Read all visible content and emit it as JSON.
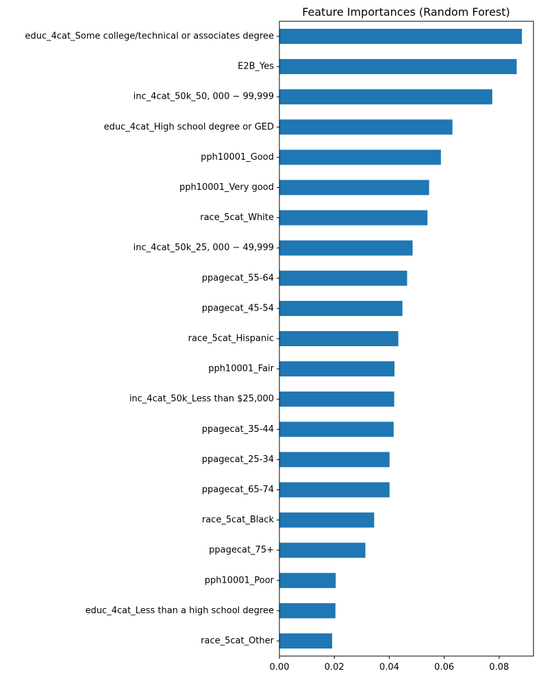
{
  "chart_data": {
    "type": "bar",
    "orientation": "horizontal",
    "title": "Feature Importances (Random Forest)",
    "xlabel": "",
    "ylabel": "",
    "xlim": [
      0.0,
      0.0925
    ],
    "x_ticks": [
      "0.00",
      "0.02",
      "0.04",
      "0.06",
      "0.08"
    ],
    "x_tick_values": [
      0.0,
      0.02,
      0.04,
      0.06,
      0.08
    ],
    "bar_color": "#1f77b4",
    "grid": false,
    "categories": [
      "educ_4cat_Some college/technical or associates degree",
      "E2B_Yes",
      "inc_4cat_50k_50, 000 − 99,999",
      "educ_4cat_High school degree or GED",
      "pph10001_Good",
      "pph10001_Very good",
      "race_5cat_White",
      "inc_4cat_50k_25, 000 − 49,999",
      "ppagecat_55-64",
      "ppagecat_45-54",
      "race_5cat_Hispanic",
      "pph10001_Fair",
      "inc_4cat_50k_Less than $25,000",
      "ppagecat_35-44",
      "ppagecat_25-34",
      "ppagecat_65-74",
      "race_5cat_Black",
      "ppagecat_75+",
      "pph10001_Poor",
      "educ_4cat_Less than a high school degree",
      "race_5cat_Other"
    ],
    "values": [
      0.0883,
      0.0864,
      0.0775,
      0.063,
      0.0588,
      0.0545,
      0.0539,
      0.0485,
      0.0465,
      0.0448,
      0.0433,
      0.0419,
      0.0418,
      0.0416,
      0.0401,
      0.0401,
      0.0345,
      0.0313,
      0.0205,
      0.0204,
      0.0192
    ]
  }
}
